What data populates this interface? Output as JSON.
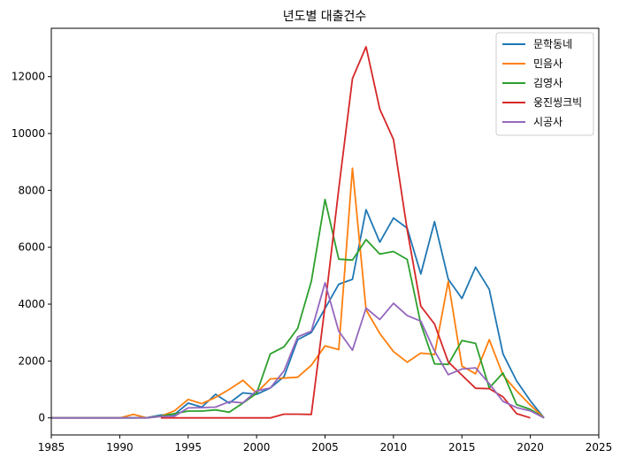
{
  "chart_data": {
    "type": "line",
    "title": "년도별 대출건수",
    "xlabel": "",
    "ylabel": "",
    "xlim": [
      1985,
      2025
    ],
    "ylim": [
      -600,
      13700
    ],
    "x_ticks": [
      1985,
      1990,
      1995,
      2000,
      2005,
      2010,
      2015,
      2020,
      2025
    ],
    "y_ticks": [
      0,
      2000,
      4000,
      6000,
      8000,
      10000,
      12000
    ],
    "grid": false,
    "legend_position": "top-right",
    "series": [
      {
        "name": "문학동네",
        "color": "#1f77b4",
        "points": [
          [
            1985,
            0
          ],
          [
            1986,
            0
          ],
          [
            1987,
            0
          ],
          [
            1988,
            0
          ],
          [
            1989,
            0
          ],
          [
            1990,
            0
          ],
          [
            1991,
            0
          ],
          [
            1992,
            10
          ],
          [
            1993,
            100
          ],
          [
            1994,
            120
          ],
          [
            1995,
            520
          ],
          [
            1996,
            380
          ],
          [
            1997,
            830
          ],
          [
            1998,
            520
          ],
          [
            1999,
            880
          ],
          [
            2000,
            830
          ],
          [
            2001,
            1050
          ],
          [
            2002,
            1450
          ],
          [
            2003,
            2750
          ],
          [
            2004,
            3000
          ],
          [
            2005,
            3850
          ],
          [
            2006,
            4700
          ],
          [
            2007,
            4870
          ],
          [
            2008,
            7320
          ],
          [
            2009,
            6180
          ],
          [
            2010,
            7030
          ],
          [
            2011,
            6670
          ],
          [
            2012,
            5060
          ],
          [
            2013,
            6900
          ],
          [
            2014,
            4880
          ],
          [
            2015,
            4200
          ],
          [
            2016,
            5300
          ],
          [
            2017,
            4520
          ],
          [
            2018,
            2250
          ],
          [
            2019,
            1300
          ],
          [
            2020,
            600
          ],
          [
            2021,
            0
          ]
        ]
      },
      {
        "name": "민음사",
        "color": "#ff7f0e",
        "points": [
          [
            1985,
            0
          ],
          [
            1986,
            0
          ],
          [
            1987,
            0
          ],
          [
            1988,
            0
          ],
          [
            1989,
            0
          ],
          [
            1990,
            0
          ],
          [
            1991,
            120
          ],
          [
            1992,
            0
          ],
          [
            1993,
            60
          ],
          [
            1994,
            250
          ],
          [
            1995,
            650
          ],
          [
            1996,
            500
          ],
          [
            1997,
            720
          ],
          [
            1998,
            1000
          ],
          [
            1999,
            1320
          ],
          [
            2000,
            880
          ],
          [
            2001,
            1370
          ],
          [
            2002,
            1400
          ],
          [
            2003,
            1430
          ],
          [
            2004,
            1850
          ],
          [
            2005,
            2530
          ],
          [
            2006,
            2400
          ],
          [
            2007,
            8780
          ],
          [
            2008,
            3800
          ],
          [
            2009,
            2970
          ],
          [
            2010,
            2330
          ],
          [
            2011,
            1960
          ],
          [
            2012,
            2280
          ],
          [
            2013,
            2230
          ],
          [
            2014,
            4800
          ],
          [
            2015,
            1820
          ],
          [
            2016,
            1550
          ],
          [
            2017,
            2750
          ],
          [
            2018,
            1500
          ],
          [
            2019,
            950
          ],
          [
            2020,
            450
          ],
          [
            2021,
            0
          ]
        ]
      },
      {
        "name": "김영사",
        "color": "#2ca02c",
        "points": [
          [
            1985,
            0
          ],
          [
            1986,
            0
          ],
          [
            1987,
            0
          ],
          [
            1988,
            0
          ],
          [
            1989,
            0
          ],
          [
            1990,
            0
          ],
          [
            1991,
            0
          ],
          [
            1992,
            0
          ],
          [
            1993,
            60
          ],
          [
            1994,
            150
          ],
          [
            1995,
            240
          ],
          [
            1996,
            240
          ],
          [
            1997,
            280
          ],
          [
            1998,
            200
          ],
          [
            1999,
            520
          ],
          [
            2000,
            860
          ],
          [
            2001,
            2250
          ],
          [
            2002,
            2500
          ],
          [
            2003,
            3150
          ],
          [
            2004,
            4800
          ],
          [
            2005,
            7680
          ],
          [
            2006,
            5580
          ],
          [
            2007,
            5550
          ],
          [
            2008,
            6270
          ],
          [
            2009,
            5760
          ],
          [
            2010,
            5850
          ],
          [
            2011,
            5570
          ],
          [
            2012,
            3300
          ],
          [
            2013,
            1900
          ],
          [
            2014,
            1880
          ],
          [
            2015,
            2720
          ],
          [
            2016,
            2620
          ],
          [
            2017,
            1050
          ],
          [
            2018,
            1580
          ],
          [
            2019,
            470
          ],
          [
            2020,
            300
          ],
          [
            2021,
            0
          ]
        ]
      },
      {
        "name": "웅진씽크빅",
        "color": "#d62728",
        "points": [
          [
            1993,
            0
          ],
          [
            1994,
            0
          ],
          [
            1995,
            0
          ],
          [
            1996,
            0
          ],
          [
            1997,
            0
          ],
          [
            1998,
            0
          ],
          [
            1999,
            0
          ],
          [
            2000,
            0
          ],
          [
            2001,
            0
          ],
          [
            2002,
            130
          ],
          [
            2003,
            130
          ],
          [
            2004,
            120
          ],
          [
            2005,
            3930
          ],
          [
            2006,
            8050
          ],
          [
            2007,
            11930
          ],
          [
            2008,
            13050
          ],
          [
            2009,
            10860
          ],
          [
            2010,
            9790
          ],
          [
            2011,
            6610
          ],
          [
            2012,
            3930
          ],
          [
            2013,
            3300
          ],
          [
            2014,
            1970
          ],
          [
            2015,
            1500
          ],
          [
            2016,
            1040
          ],
          [
            2017,
            1030
          ],
          [
            2018,
            740
          ],
          [
            2019,
            150
          ],
          [
            2020,
            0
          ]
        ]
      },
      {
        "name": "시공사",
        "color": "#9467bd",
        "points": [
          [
            1985,
            0
          ],
          [
            1986,
            0
          ],
          [
            1987,
            0
          ],
          [
            1988,
            0
          ],
          [
            1989,
            0
          ],
          [
            1990,
            0
          ],
          [
            1991,
            0
          ],
          [
            1992,
            0
          ],
          [
            1993,
            50
          ],
          [
            1994,
            60
          ],
          [
            1995,
            350
          ],
          [
            1996,
            360
          ],
          [
            1997,
            380
          ],
          [
            1998,
            570
          ],
          [
            1999,
            530
          ],
          [
            2000,
            950
          ],
          [
            2001,
            1050
          ],
          [
            2002,
            1650
          ],
          [
            2003,
            2850
          ],
          [
            2004,
            3050
          ],
          [
            2005,
            4750
          ],
          [
            2006,
            3050
          ],
          [
            2007,
            2380
          ],
          [
            2008,
            3860
          ],
          [
            2009,
            3460
          ],
          [
            2010,
            4030
          ],
          [
            2011,
            3600
          ],
          [
            2012,
            3400
          ],
          [
            2013,
            2350
          ],
          [
            2014,
            1520
          ],
          [
            2015,
            1720
          ],
          [
            2016,
            1760
          ],
          [
            2017,
            1200
          ],
          [
            2018,
            580
          ],
          [
            2019,
            360
          ],
          [
            2020,
            250
          ],
          [
            2021,
            0
          ]
        ]
      }
    ]
  }
}
